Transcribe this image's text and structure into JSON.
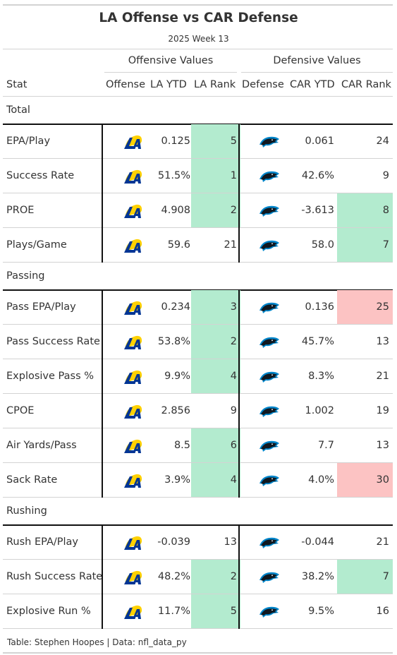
{
  "header": {
    "title": "LA Offense vs CAR Defense",
    "subtitle": "2025 Week 13"
  },
  "spanners": {
    "offense": "Offensive Values",
    "defense": "Defensive Values"
  },
  "columns": {
    "stat": "Stat",
    "offense": "Offense",
    "la_ytd": "LA YTD",
    "la_rank": "LA Rank",
    "defense": "Defense",
    "car_ytd": "CAR YTD",
    "car_rank": "CAR Rank"
  },
  "colors": {
    "good": "#b3ebcf",
    "bad": "#fcc3c3",
    "rams_blue": "#003594",
    "rams_gold": "#ffd100",
    "panthers_blue": "#0085ca",
    "panthers_black": "#101820"
  },
  "groups": [
    {
      "label": "Total",
      "rows": [
        {
          "stat": "EPA/Play",
          "la_ytd": "0.125",
          "la_rank": "5",
          "la_rank_hl": "good",
          "car_ytd": "0.061",
          "car_rank": "24",
          "car_rank_hl": ""
        },
        {
          "stat": "Success Rate",
          "la_ytd": "51.5%",
          "la_rank": "1",
          "la_rank_hl": "good",
          "car_ytd": "42.6%",
          "car_rank": "9",
          "car_rank_hl": ""
        },
        {
          "stat": "PROE",
          "la_ytd": "4.908",
          "la_rank": "2",
          "la_rank_hl": "good",
          "car_ytd": "-3.613",
          "car_rank": "8",
          "car_rank_hl": "good"
        },
        {
          "stat": "Plays/Game",
          "la_ytd": "59.6",
          "la_rank": "21",
          "la_rank_hl": "",
          "car_ytd": "58.0",
          "car_rank": "7",
          "car_rank_hl": "good"
        }
      ]
    },
    {
      "label": "Passing",
      "rows": [
        {
          "stat": "Pass EPA/Play",
          "la_ytd": "0.234",
          "la_rank": "3",
          "la_rank_hl": "good",
          "car_ytd": "0.136",
          "car_rank": "25",
          "car_rank_hl": "bad"
        },
        {
          "stat": "Pass Success Rate",
          "la_ytd": "53.8%",
          "la_rank": "2",
          "la_rank_hl": "good",
          "car_ytd": "45.7%",
          "car_rank": "13",
          "car_rank_hl": ""
        },
        {
          "stat": "Explosive Pass %",
          "la_ytd": "9.9%",
          "la_rank": "4",
          "la_rank_hl": "good",
          "car_ytd": "8.3%",
          "car_rank": "21",
          "car_rank_hl": ""
        },
        {
          "stat": "CPOE",
          "la_ytd": "2.856",
          "la_rank": "9",
          "la_rank_hl": "",
          "car_ytd": "1.002",
          "car_rank": "19",
          "car_rank_hl": ""
        },
        {
          "stat": "Air Yards/Pass",
          "la_ytd": "8.5",
          "la_rank": "6",
          "la_rank_hl": "good",
          "car_ytd": "7.7",
          "car_rank": "13",
          "car_rank_hl": ""
        },
        {
          "stat": "Sack Rate",
          "la_ytd": "3.9%",
          "la_rank": "4",
          "la_rank_hl": "good",
          "car_ytd": "4.0%",
          "car_rank": "30",
          "car_rank_hl": "bad"
        }
      ]
    },
    {
      "label": "Rushing",
      "rows": [
        {
          "stat": "Rush EPA/Play",
          "la_ytd": "-0.039",
          "la_rank": "13",
          "la_rank_hl": "",
          "car_ytd": "-0.044",
          "car_rank": "21",
          "car_rank_hl": ""
        },
        {
          "stat": "Rush Success Rate",
          "la_ytd": "48.2%",
          "la_rank": "2",
          "la_rank_hl": "good",
          "car_ytd": "38.2%",
          "car_rank": "7",
          "car_rank_hl": "good"
        },
        {
          "stat": "Explosive Run %",
          "la_ytd": "11.7%",
          "la_rank": "5",
          "la_rank_hl": "good",
          "car_ytd": "9.5%",
          "car_rank": "16",
          "car_rank_hl": ""
        }
      ]
    }
  ],
  "footer": "Table: Stephen Hoopes | Data: nfl_data_py"
}
